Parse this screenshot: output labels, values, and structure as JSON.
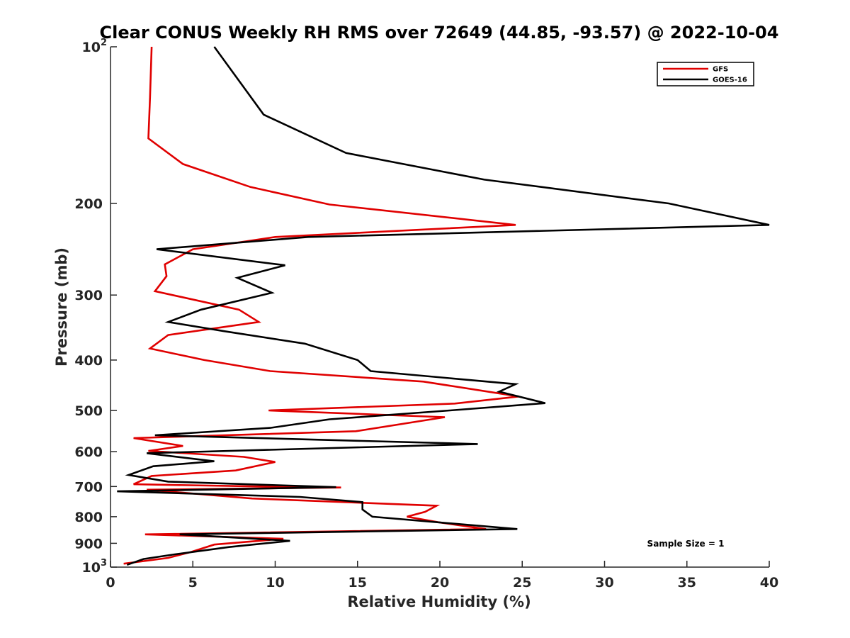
{
  "chart_data": {
    "type": "line",
    "title": "Clear CONUS Weekly RH RMS over 72649 (44.85, -93.57) @ 2022-10-04",
    "xlabel": "Relative Humidity (%)",
    "ylabel": "Pressure (mb)",
    "xlim": [
      0,
      40
    ],
    "ylim": [
      100,
      1000
    ],
    "yscale": "log",
    "y_reversed": true,
    "xticks": [
      "0",
      "5",
      "10",
      "15",
      "20",
      "25",
      "30",
      "35",
      "40"
    ],
    "yticks": [
      {
        "value": 100,
        "label": "10",
        "sup": "2"
      },
      {
        "value": 200,
        "label": "200",
        "sup": ""
      },
      {
        "value": 300,
        "label": "300",
        "sup": ""
      },
      {
        "value": 400,
        "label": "400",
        "sup": ""
      },
      {
        "value": 500,
        "label": "500",
        "sup": ""
      },
      {
        "value": 600,
        "label": "600",
        "sup": ""
      },
      {
        "value": 700,
        "label": "700",
        "sup": ""
      },
      {
        "value": 800,
        "label": "800",
        "sup": ""
      },
      {
        "value": 900,
        "label": "900",
        "sup": ""
      },
      {
        "value": 1000,
        "label": "10",
        "sup": "3"
      }
    ],
    "grid": false,
    "legend_position": "top-right",
    "annotation": "Sample Size = 1",
    "series": [
      {
        "name": "GFS",
        "color": "#e00000",
        "points": [
          [
            2.5,
            100
          ],
          [
            2.4,
            125
          ],
          [
            2.3,
            150
          ],
          [
            4.4,
            168
          ],
          [
            8.5,
            186
          ],
          [
            13.3,
            201
          ],
          [
            24.6,
            220
          ],
          [
            10.0,
            232
          ],
          [
            5.0,
            245
          ],
          [
            3.3,
            262
          ],
          [
            3.4,
            276
          ],
          [
            2.7,
            295
          ],
          [
            7.8,
            320
          ],
          [
            9.0,
            338
          ],
          [
            3.5,
            358
          ],
          [
            2.4,
            380
          ],
          [
            5.7,
            400
          ],
          [
            9.7,
            420
          ],
          [
            19.0,
            440
          ],
          [
            24.8,
            470
          ],
          [
            20.9,
            485
          ],
          [
            9.6,
            500
          ],
          [
            20.3,
            515
          ],
          [
            14.9,
            548
          ],
          [
            1.4,
            565
          ],
          [
            4.4,
            585
          ],
          [
            2.3,
            598
          ],
          [
            8.1,
            614
          ],
          [
            10.0,
            628
          ],
          [
            7.6,
            652
          ],
          [
            2.5,
            668
          ],
          [
            1.4,
            693
          ],
          [
            9.2,
            700
          ],
          [
            14.0,
            703
          ],
          [
            2.2,
            710
          ],
          [
            8.6,
            738
          ],
          [
            19.8,
            762
          ],
          [
            19.1,
            783
          ],
          [
            18.0,
            800
          ],
          [
            19.9,
            820
          ],
          [
            22.8,
            845
          ],
          [
            2.1,
            865
          ],
          [
            10.5,
            882
          ],
          [
            6.3,
            905
          ],
          [
            4.9,
            935
          ],
          [
            3.5,
            960
          ],
          [
            0.8,
            985
          ]
        ]
      },
      {
        "name": "GOES-16",
        "color": "#000000",
        "points": [
          [
            6.3,
            100
          ],
          [
            7.7,
            115
          ],
          [
            9.3,
            135
          ],
          [
            14.3,
            160
          ],
          [
            22.7,
            180
          ],
          [
            33.9,
            200
          ],
          [
            40.0,
            220
          ],
          [
            12.0,
            232
          ],
          [
            2.8,
            245
          ],
          [
            10.6,
            263
          ],
          [
            7.7,
            278
          ],
          [
            9.8,
            297
          ],
          [
            5.5,
            320
          ],
          [
            3.5,
            338
          ],
          [
            6.9,
            352
          ],
          [
            11.8,
            372
          ],
          [
            15.0,
            400
          ],
          [
            15.8,
            420
          ],
          [
            24.6,
            445
          ],
          [
            23.6,
            460
          ],
          [
            26.4,
            484
          ],
          [
            20.6,
            500
          ],
          [
            13.3,
            520
          ],
          [
            9.7,
            540
          ],
          [
            2.7,
            558
          ],
          [
            22.3,
            580
          ],
          [
            2.2,
            604
          ],
          [
            6.3,
            626
          ],
          [
            2.6,
            640
          ],
          [
            1.1,
            665
          ],
          [
            3.5,
            685
          ],
          [
            13.7,
            702
          ],
          [
            0.4,
            715
          ],
          [
            11.5,
            733
          ],
          [
            15.3,
            750
          ],
          [
            15.3,
            775
          ],
          [
            15.9,
            800
          ],
          [
            24.7,
            845
          ],
          [
            4.2,
            865
          ],
          [
            10.9,
            890
          ],
          [
            7.2,
            915
          ],
          [
            3.9,
            945
          ],
          [
            2.0,
            965
          ],
          [
            1.0,
            990
          ]
        ]
      }
    ]
  }
}
